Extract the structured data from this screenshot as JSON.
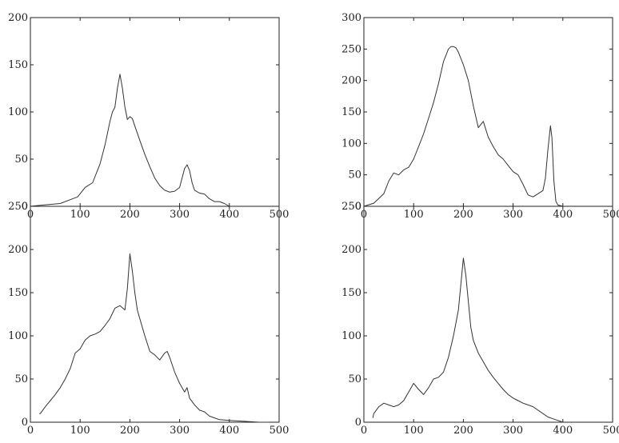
{
  "chart_data": [
    {
      "type": "line",
      "title": "",
      "xlabel": "",
      "ylabel": "",
      "xlim": [
        0,
        500
      ],
      "ylim": [
        0,
        200
      ],
      "xticks": [
        0,
        100,
        200,
        300,
        400,
        500
      ],
      "yticks": [
        0,
        50,
        100,
        150,
        200
      ],
      "grid": false,
      "series": [
        {
          "x": [
            0,
            20,
            40,
            60,
            80,
            95,
            110,
            125,
            140,
            150,
            160,
            165,
            170,
            175,
            180,
            185,
            190,
            195,
            200,
            205,
            210,
            220,
            230,
            240,
            250,
            260,
            270,
            280,
            290,
            300,
            305,
            310,
            315,
            320,
            325,
            330,
            340,
            350,
            360,
            370,
            380,
            390,
            400,
            420,
            450,
            500
          ],
          "y": [
            0,
            1,
            2,
            3,
            7,
            10,
            20,
            25,
            45,
            65,
            90,
            100,
            105,
            125,
            140,
            125,
            105,
            92,
            95,
            93,
            85,
            70,
            55,
            42,
            30,
            22,
            17,
            15,
            16,
            20,
            30,
            40,
            44,
            38,
            25,
            17,
            14,
            13,
            8,
            5,
            5,
            3,
            0,
            0,
            0,
            0
          ]
        }
      ]
    },
    {
      "type": "line",
      "title": "",
      "xlabel": "",
      "ylabel": "",
      "xlim": [
        0,
        500
      ],
      "ylim": [
        0,
        300
      ],
      "xticks": [
        0,
        100,
        200,
        300,
        400,
        500
      ],
      "yticks": [
        0,
        50,
        100,
        150,
        200,
        250,
        300
      ],
      "grid": false,
      "series": [
        {
          "x": [
            0,
            20,
            40,
            50,
            60,
            70,
            80,
            90,
            100,
            110,
            120,
            130,
            140,
            150,
            160,
            170,
            175,
            180,
            185,
            190,
            200,
            210,
            220,
            230,
            235,
            240,
            250,
            260,
            270,
            280,
            290,
            300,
            310,
            320,
            330,
            340,
            350,
            360,
            365,
            370,
            375,
            378,
            382,
            386,
            390,
            400,
            420,
            450,
            500
          ],
          "y": [
            0,
            5,
            20,
            40,
            53,
            50,
            58,
            62,
            75,
            95,
            115,
            140,
            165,
            195,
            230,
            250,
            254,
            254,
            252,
            245,
            225,
            200,
            160,
            125,
            130,
            135,
            110,
            95,
            82,
            75,
            65,
            55,
            50,
            35,
            18,
            15,
            20,
            25,
            45,
            90,
            128,
            110,
            40,
            8,
            2,
            0,
            0,
            0,
            0
          ]
        }
      ]
    },
    {
      "type": "line",
      "title": "",
      "xlabel": "",
      "ylabel": "",
      "xlim": [
        0,
        500
      ],
      "ylim": [
        0,
        250
      ],
      "xticks": [
        0,
        100,
        200,
        300,
        400,
        500
      ],
      "yticks": [
        0,
        50,
        100,
        150,
        200,
        250
      ],
      "grid": false,
      "series": [
        {
          "x": [
            18,
            20,
            30,
            40,
            50,
            60,
            70,
            80,
            90,
            100,
            110,
            120,
            130,
            140,
            150,
            160,
            170,
            180,
            190,
            195,
            200,
            205,
            210,
            215,
            220,
            230,
            240,
            250,
            260,
            270,
            275,
            280,
            290,
            300,
            310,
            315,
            320,
            330,
            340,
            350,
            360,
            370,
            380,
            400,
            430,
            460,
            480
          ],
          "y": [
            10,
            10,
            18,
            25,
            32,
            40,
            50,
            62,
            80,
            85,
            95,
            100,
            102,
            105,
            112,
            120,
            132,
            135,
            130,
            155,
            195,
            175,
            150,
            130,
            120,
            100,
            82,
            78,
            72,
            80,
            82,
            75,
            58,
            45,
            35,
            40,
            28,
            20,
            14,
            12,
            7,
            5,
            3,
            2,
            1,
            0,
            0
          ]
        }
      ]
    },
    {
      "type": "line",
      "title": "",
      "xlabel": "",
      "ylabel": "",
      "xlim": [
        0,
        500
      ],
      "ylim": [
        0,
        250
      ],
      "xticks": [
        0,
        100,
        200,
        300,
        400,
        500
      ],
      "yticks": [
        0,
        50,
        100,
        150,
        200,
        250
      ],
      "grid": false,
      "series": [
        {
          "x": [
            18,
            20,
            30,
            40,
            50,
            60,
            70,
            80,
            90,
            100,
            110,
            120,
            130,
            140,
            150,
            160,
            170,
            180,
            190,
            195,
            200,
            205,
            210,
            215,
            220,
            230,
            240,
            250,
            260,
            270,
            280,
            290,
            300,
            310,
            320,
            330,
            340,
            350,
            360,
            370,
            380,
            390,
            400
          ],
          "y": [
            5,
            10,
            18,
            22,
            20,
            18,
            20,
            25,
            35,
            45,
            38,
            32,
            40,
            50,
            52,
            58,
            75,
            100,
            130,
            160,
            190,
            170,
            140,
            110,
            95,
            80,
            70,
            60,
            52,
            45,
            38,
            32,
            28,
            25,
            22,
            20,
            18,
            14,
            10,
            6,
            4,
            2,
            0
          ]
        }
      ]
    }
  ]
}
